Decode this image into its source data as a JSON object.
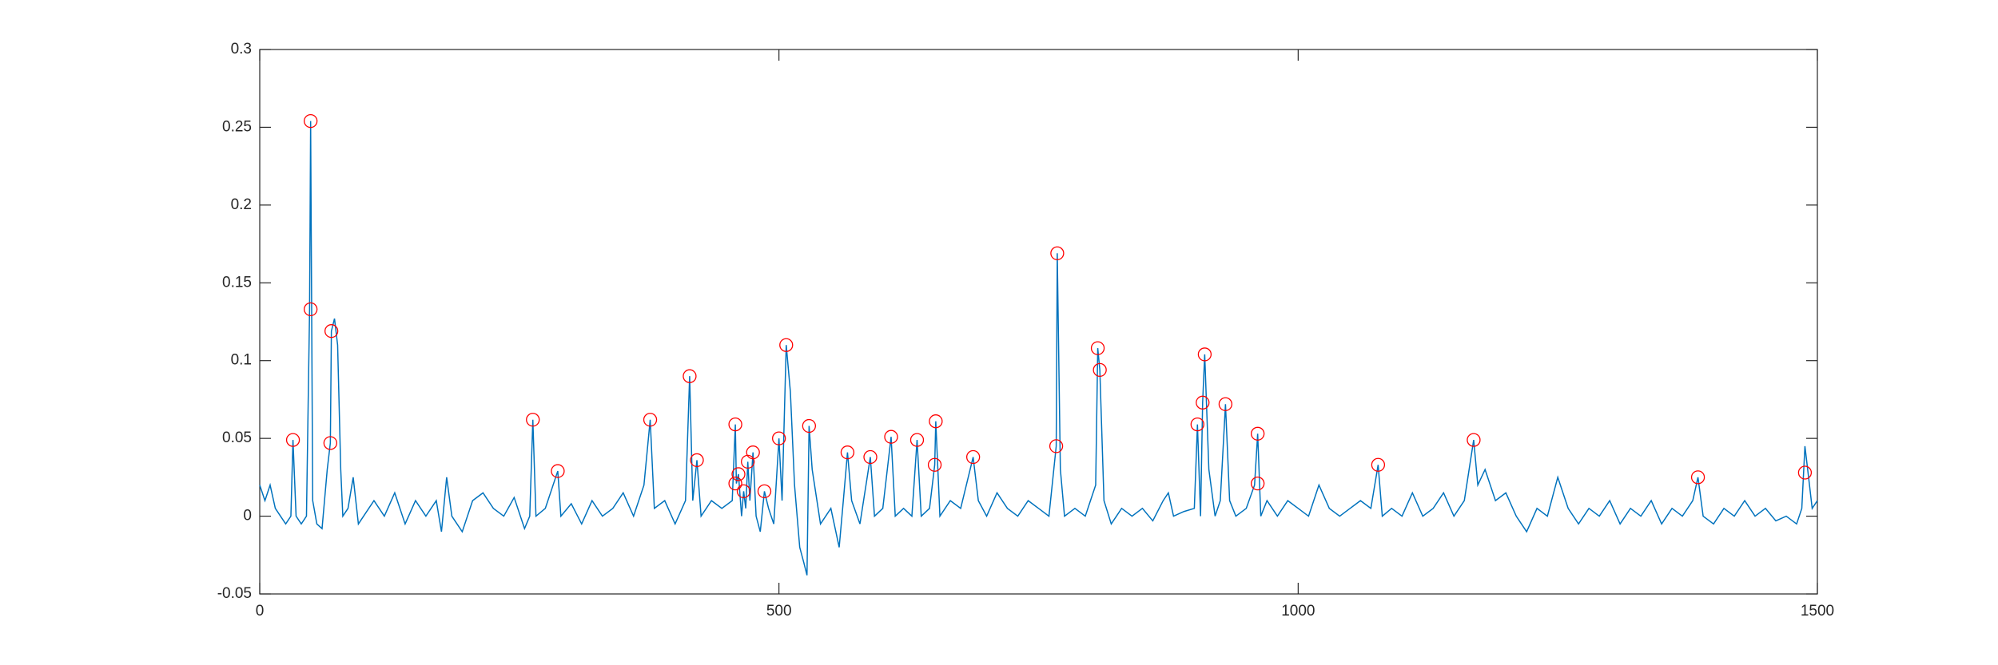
{
  "chart_data": {
    "type": "line",
    "color": "#0072bd",
    "x": [
      0,
      5,
      10,
      15,
      20,
      25,
      30,
      32,
      35,
      40,
      45,
      48,
      49,
      51,
      55,
      60,
      65,
      68,
      69,
      72,
      75,
      78,
      80,
      85,
      90,
      95,
      100,
      110,
      120,
      130,
      140,
      150,
      160,
      170,
      175,
      180,
      185,
      195,
      205,
      215,
      225,
      235,
      245,
      255,
      260,
      263,
      266,
      275,
      287,
      290,
      300,
      310,
      320,
      330,
      340,
      350,
      360,
      370,
      376,
      380,
      390,
      400,
      410,
      414,
      417,
      421,
      425,
      435,
      445,
      455,
      458,
      459,
      461,
      464,
      466,
      468,
      470,
      472,
      475,
      478,
      482,
      486,
      490,
      495,
      500,
      503,
      507,
      511,
      515,
      520,
      524,
      527,
      529,
      532,
      540,
      550,
      558,
      562,
      566,
      570,
      578,
      588,
      592,
      600,
      608,
      612,
      620,
      628,
      633,
      637,
      645,
      650,
      651,
      655,
      665,
      675,
      687,
      692,
      700,
      710,
      720,
      730,
      740,
      750,
      760,
      767,
      768,
      771,
      775,
      785,
      795,
      805,
      807,
      809,
      813,
      820,
      830,
      840,
      850,
      860,
      870,
      875,
      880,
      890,
      900,
      903,
      906,
      908,
      910,
      914,
      920,
      925,
      930,
      934,
      940,
      950,
      958,
      961,
      964,
      970,
      980,
      990,
      1000,
      1010,
      1020,
      1030,
      1040,
      1050,
      1060,
      1070,
      1077,
      1081,
      1090,
      1100,
      1110,
      1120,
      1130,
      1140,
      1150,
      1160,
      1169,
      1173,
      1180,
      1190,
      1200,
      1210,
      1220,
      1230,
      1240,
      1250,
      1260,
      1270,
      1280,
      1290,
      1300,
      1310,
      1320,
      1330,
      1340,
      1350,
      1360,
      1370,
      1380,
      1385,
      1390,
      1400,
      1410,
      1420,
      1430,
      1440,
      1450,
      1460,
      1470,
      1480,
      1485,
      1488,
      1491,
      1495,
      1500
    ],
    "values": [
      0.02,
      0.01,
      0.02,
      0.005,
      0,
      -0.005,
      0,
      0.049,
      0,
      -0.005,
      0,
      0.133,
      0.254,
      0.01,
      -0.005,
      -0.008,
      0.03,
      0.047,
      0.119,
      0.127,
      0.11,
      0.03,
      0,
      0.005,
      0.025,
      -0.005,
      0,
      0.01,
      0,
      0.015,
      -0.005,
      0.01,
      0,
      0.01,
      -0.01,
      0.025,
      0,
      -0.01,
      0.01,
      0.015,
      0.005,
      0,
      0.012,
      -0.008,
      0,
      0.062,
      0,
      0.005,
      0.029,
      0,
      0.008,
      -0.005,
      0.01,
      0,
      0.005,
      0.015,
      0,
      0.02,
      0.062,
      0.005,
      0.01,
      -0.005,
      0.01,
      0.09,
      0.01,
      0.036,
      0,
      0.01,
      0.005,
      0.01,
      0.059,
      0.021,
      0.027,
      0,
      0.016,
      0.005,
      0.035,
      0.01,
      0.041,
      0,
      -0.01,
      0.016,
      0.005,
      -0.005,
      0.05,
      0.01,
      0.11,
      0.08,
      0.02,
      -0.02,
      -0.03,
      -0.038,
      0.058,
      0.03,
      -0.005,
      0.005,
      -0.02,
      0.01,
      0.041,
      0.01,
      -0.005,
      0.038,
      0,
      0.005,
      0.051,
      0,
      0.005,
      0,
      0.049,
      0,
      0.005,
      0.033,
      0.061,
      0,
      0.01,
      0.005,
      0.038,
      0.01,
      0,
      0.015,
      0.005,
      0,
      0.01,
      0.005,
      0,
      0.045,
      0.169,
      0.03,
      0,
      0.005,
      0,
      0.02,
      0.108,
      0.094,
      0.01,
      -0.005,
      0.005,
      0,
      0.005,
      -0.003,
      0.01,
      0.015,
      0,
      0.003,
      0.005,
      0.059,
      0,
      0.073,
      0.104,
      0.03,
      0,
      0.01,
      0.072,
      0.01,
      0,
      0.005,
      0.02,
      0.053,
      0,
      0.01,
      0,
      0.01,
      0.005,
      0,
      0.02,
      0.005,
      0,
      0.005,
      0.01,
      0.005,
      0.033,
      0,
      0.005,
      0,
      0.015,
      0,
      0.005,
      0.015,
      0,
      0.01,
      0.049,
      0.02,
      0.03,
      0.01,
      0.015,
      0,
      -0.01,
      0.005,
      0,
      0.025,
      0.005,
      -0.005,
      0.005,
      0,
      0.01,
      -0.005,
      0.005,
      0,
      0.01,
      -0.005,
      0.005,
      0,
      0.01,
      0.025,
      0,
      -0.005,
      0.005,
      0,
      0.01,
      0,
      0.005,
      -0.003,
      0,
      -0.005,
      0.005,
      0.045,
      0.028,
      0.005,
      0.01
    ],
    "markers": {
      "color": "#ff0000",
      "x": [
        32,
        49,
        49,
        69,
        68,
        263,
        287,
        376,
        414,
        421,
        458,
        458,
        461,
        466,
        470,
        475,
        486,
        500,
        507,
        529,
        566,
        588,
        608,
        633,
        651,
        650,
        687,
        767,
        768,
        807,
        809,
        903,
        908,
        910,
        930,
        961,
        961,
        1077,
        1169,
        1385,
        1488
      ],
      "values": [
        0.049,
        0.254,
        0.133,
        0.119,
        0.047,
        0.062,
        0.029,
        0.062,
        0.09,
        0.036,
        0.059,
        0.021,
        0.027,
        0.016,
        0.035,
        0.041,
        0.016,
        0.05,
        0.11,
        0.058,
        0.041,
        0.038,
        0.051,
        0.049,
        0.061,
        0.033,
        0.038,
        0.045,
        0.169,
        0.108,
        0.094,
        0.059,
        0.073,
        0.104,
        0.072,
        0.053,
        0.021,
        0.033,
        0.049,
        0.025,
        0.028
      ]
    },
    "xlim": [
      0,
      1500
    ],
    "xticks": [
      0,
      500,
      1000,
      1500
    ],
    "ylim": [
      -0.05,
      0.3
    ],
    "yticks": [
      -0.05,
      0,
      0.05,
      0.1,
      0.15,
      0.2,
      0.25,
      0.3
    ]
  }
}
